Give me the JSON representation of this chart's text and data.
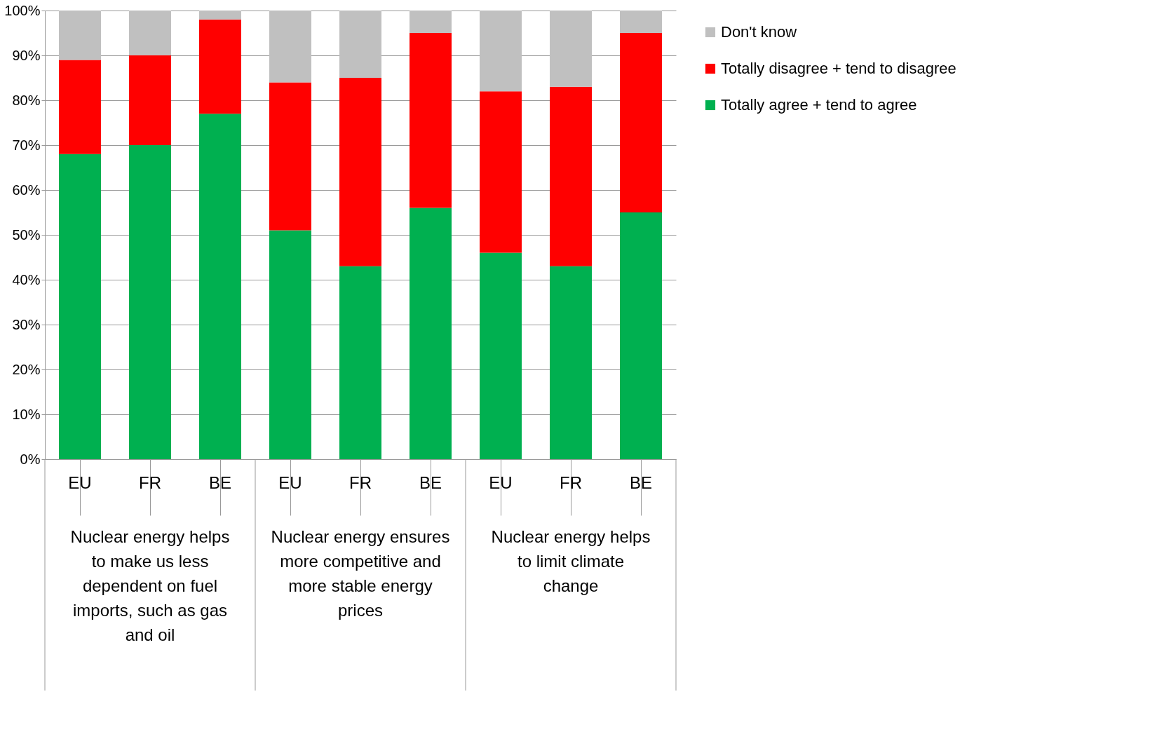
{
  "chart_data": {
    "type": "bar",
    "stacked": true,
    "categories": [
      "EU",
      "FR",
      "BE",
      "EU",
      "FR",
      "BE",
      "EU",
      "FR",
      "BE"
    ],
    "series": [
      {
        "name": "Totally agree + tend to agree",
        "color": "#00b050",
        "values": [
          68,
          70,
          77,
          51,
          43,
          56,
          46,
          43,
          55
        ]
      },
      {
        "name": "Totally disagree + tend to disagree",
        "color": "#ff0000",
        "values": [
          21,
          20,
          21,
          33,
          42,
          39,
          36,
          40,
          40
        ]
      },
      {
        "name": "Don't know",
        "color": "#c0c0c0",
        "values": [
          11,
          10,
          2,
          16,
          15,
          5,
          18,
          17,
          5
        ]
      }
    ],
    "ylim": [
      0,
      100
    ],
    "yticks": [
      {
        "value": 0,
        "label": "0%"
      },
      {
        "value": 10,
        "label": "10%"
      },
      {
        "value": 20,
        "label": "20%"
      },
      {
        "value": 30,
        "label": "30%"
      },
      {
        "value": 40,
        "label": "40%"
      },
      {
        "value": 50,
        "label": "50%"
      },
      {
        "value": 60,
        "label": "60%"
      },
      {
        "value": 70,
        "label": "70%"
      },
      {
        "value": 80,
        "label": "80%"
      },
      {
        "value": 90,
        "label": "90%"
      },
      {
        "value": 100,
        "label": "100%"
      }
    ],
    "grid": "y",
    "legend": "top right",
    "annotations": [
      "Nuclear energy helps to make us less dependent on fuel imports, such as gas and oil",
      "Nuclear energy ensures more competitive and more stable energy prices",
      "Nuclear energy helps to limit climate change"
    ]
  }
}
